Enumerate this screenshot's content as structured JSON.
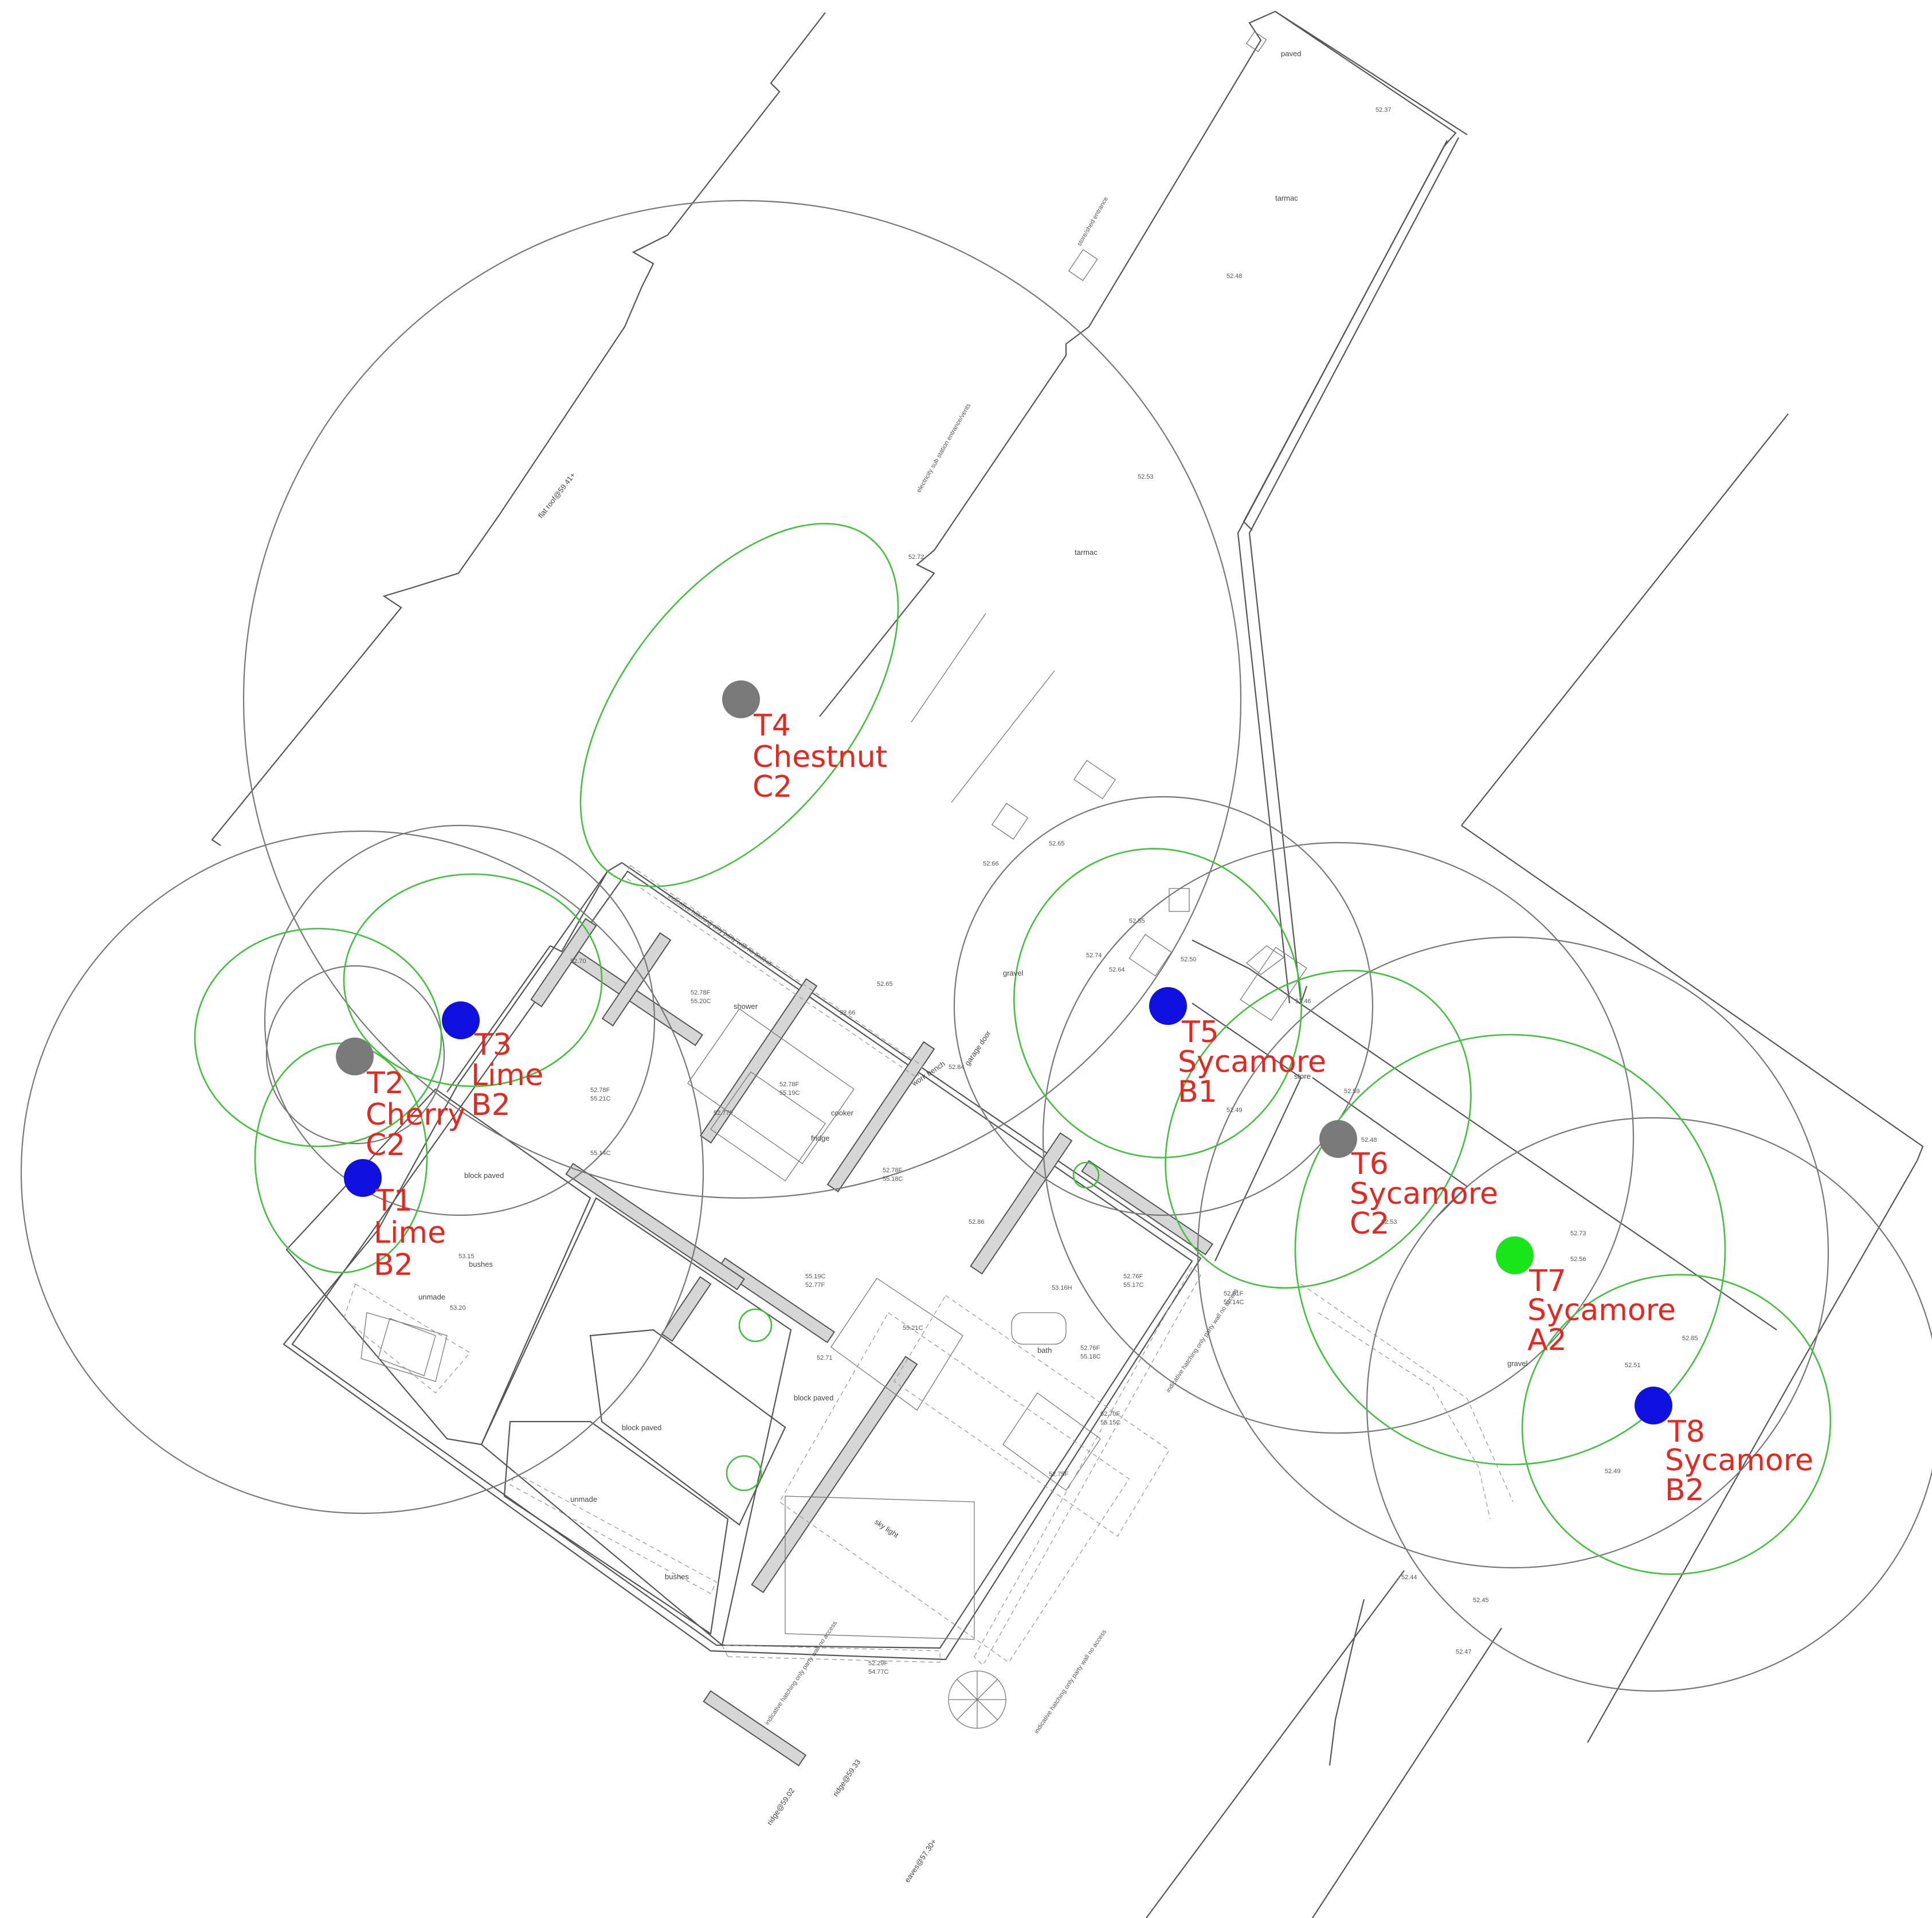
{
  "colors": {
    "category_A": "#19e619",
    "category_B": "#1010e0",
    "category_C": "#7a7a7a",
    "annotation": "#e8261f",
    "canopy": "#3ec23a",
    "root_area": "#777777"
  },
  "trees": [
    {
      "id": "T1",
      "species": "Lime",
      "category": "B2"
    },
    {
      "id": "T2",
      "species": "Cherry",
      "category": "C2"
    },
    {
      "id": "T3",
      "species": "Lime",
      "category": "B2"
    },
    {
      "id": "T4",
      "species": "Chestnut",
      "category": "C2"
    },
    {
      "id": "T5",
      "species": "Sycamore",
      "category": "B1"
    },
    {
      "id": "T6",
      "species": "Sycamore",
      "category": "C2"
    },
    {
      "id": "T7",
      "species": "Sycamore",
      "category": "A2"
    },
    {
      "id": "T8",
      "species": "Sycamore",
      "category": "B2"
    }
  ],
  "site_labels": {
    "tarmac_1": "tarmac",
    "tarmac_2": "tarmac",
    "paved": "paved",
    "block_paved_1": "block paved",
    "block_paved_2": "block paved",
    "block_paved_3": "block paved",
    "gravel_1": "gravel",
    "gravel_2": "gravel",
    "unmade_1": "unmade",
    "unmade_2": "unmade",
    "bushes_1": "bushes",
    "bushes_2": "bushes",
    "store": "store",
    "shower": "shower",
    "cooker": "cooker",
    "fridge": "fridge",
    "bath": "bath",
    "sky_light": "sky light",
    "work_bench": "work bench",
    "garage_door": "garage door",
    "flat_roof": "flat roof@59.41+",
    "ridge_1": "ridge@59.02",
    "ridge_2": "ridge@59.33",
    "eaves": "eaves@57.30+",
    "hatching_1": "indicative hatching only party wall no access",
    "hatching_2": "indicative hatching only party wall no access",
    "hatching_3": "indicative hatching only party wall no access",
    "hatching_4": "indicative hatching only party wall no access",
    "electricity": "electricity sub station entrance/vents",
    "store_shed": "store/shed entrance"
  },
  "levels": [
    "52.72",
    "52.53",
    "52.48",
    "52.37",
    "52.65",
    "52.66",
    "52.64",
    "52.50",
    "52.49",
    "52.48",
    "52.53",
    "52.59",
    "52.46",
    "52.73",
    "52.56",
    "52.51",
    "52.85",
    "52.49",
    "52.44",
    "52.45",
    "52.47",
    "52.66",
    "52.65",
    "53.20",
    "53.15",
    "52.70",
    "52.74",
    "52.55",
    "52.78F",
    "55.20C",
    "52.78F",
    "55.21C",
    "52.78F",
    "55.19C",
    "52.78F",
    "55.18C",
    "55.14C",
    "52.77F",
    "55.19C",
    "52.77F",
    "55.21C",
    "52.71",
    "52.76F",
    "55.17C",
    "52.76F",
    "55.18C",
    "52.70F",
    "55.15C",
    "52.75F",
    "52.29F",
    "54.77C",
    "52.81F",
    "55.14C",
    "52.86",
    "52.84",
    "53.16H"
  ]
}
